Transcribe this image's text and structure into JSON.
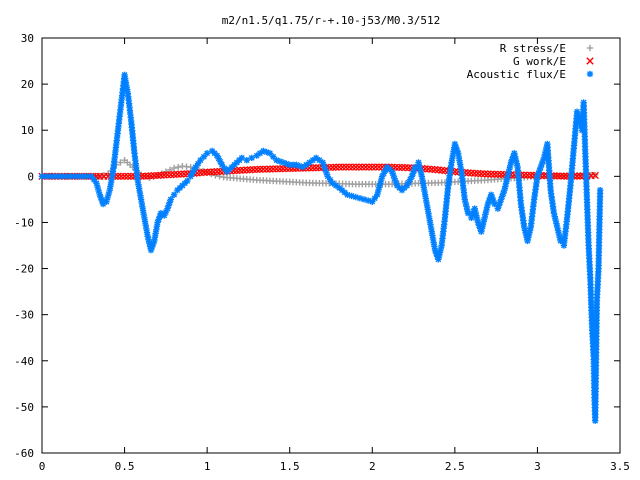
{
  "chart_data": {
    "type": "scatter",
    "title": "m2/n1.5/q1.75/r-+.10-j53/M0.3/512",
    "xlabel": "",
    "ylabel": "",
    "xlim": [
      0,
      3.5
    ],
    "ylim": [
      -60,
      30
    ],
    "xticks": [
      "0",
      "0.5",
      "1",
      "1.5",
      "2",
      "2.5",
      "3",
      "3.5"
    ],
    "yticks": [
      "30",
      "20",
      "10",
      "0",
      "-10",
      "-20",
      "-30",
      "-40",
      "-50",
      "-60"
    ],
    "grid": false,
    "legend_position": "top-right",
    "series": [
      {
        "name": "R stress/E",
        "marker": "+",
        "color": "#a0a0a0",
        "points": [
          [
            0.0,
            0
          ],
          [
            0.1,
            0
          ],
          [
            0.2,
            0
          ],
          [
            0.3,
            0
          ],
          [
            0.35,
            0
          ],
          [
            0.4,
            0.5
          ],
          [
            0.45,
            2.5
          ],
          [
            0.5,
            3.5
          ],
          [
            0.55,
            2
          ],
          [
            0.6,
            0.3
          ],
          [
            0.65,
            -0.3
          ],
          [
            0.7,
            0.2
          ],
          [
            0.75,
            1
          ],
          [
            0.8,
            1.8
          ],
          [
            0.85,
            2.2
          ],
          [
            0.9,
            2
          ],
          [
            0.95,
            1.5
          ],
          [
            1.0,
            0.8
          ],
          [
            1.05,
            0.2
          ],
          [
            1.1,
            -0.2
          ],
          [
            1.2,
            -0.5
          ],
          [
            1.3,
            -0.8
          ],
          [
            1.4,
            -1
          ],
          [
            1.5,
            -1.2
          ],
          [
            1.6,
            -1.4
          ],
          [
            1.7,
            -1.5
          ],
          [
            1.8,
            -1.6
          ],
          [
            1.9,
            -1.7
          ],
          [
            2.0,
            -1.7
          ],
          [
            2.1,
            -1.7
          ],
          [
            2.2,
            -1.6
          ],
          [
            2.3,
            -1.5
          ],
          [
            2.4,
            -1.4
          ],
          [
            2.5,
            -1.2
          ],
          [
            2.6,
            -1
          ],
          [
            2.7,
            -0.8
          ],
          [
            2.8,
            -0.5
          ],
          [
            2.9,
            -0.3
          ],
          [
            3.0,
            0
          ],
          [
            3.1,
            0
          ],
          [
            3.2,
            0.2
          ],
          [
            3.3,
            0.3
          ],
          [
            3.35,
            0.3
          ]
        ]
      },
      {
        "name": "G work/E",
        "marker": "x",
        "color": "#ff0000",
        "points": [
          [
            0.0,
            0
          ],
          [
            0.2,
            0
          ],
          [
            0.35,
            0
          ],
          [
            0.4,
            0
          ],
          [
            0.5,
            0
          ],
          [
            0.6,
            0
          ],
          [
            0.7,
            0.2
          ],
          [
            0.8,
            0.4
          ],
          [
            0.9,
            0.6
          ],
          [
            1.0,
            0.9
          ],
          [
            1.1,
            1.1
          ],
          [
            1.2,
            1.3
          ],
          [
            1.3,
            1.5
          ],
          [
            1.4,
            1.6
          ],
          [
            1.5,
            1.7
          ],
          [
            1.6,
            1.8
          ],
          [
            1.7,
            1.9
          ],
          [
            1.8,
            2
          ],
          [
            1.9,
            2
          ],
          [
            2.0,
            2
          ],
          [
            2.1,
            2
          ],
          [
            2.2,
            1.9
          ],
          [
            2.3,
            1.7
          ],
          [
            2.4,
            1.4
          ],
          [
            2.5,
            1
          ],
          [
            2.6,
            0.7
          ],
          [
            2.7,
            0.5
          ],
          [
            2.8,
            0.4
          ],
          [
            2.9,
            0.3
          ],
          [
            3.0,
            0.2
          ],
          [
            3.1,
            0.1
          ],
          [
            3.2,
            0
          ],
          [
            3.3,
            0.1
          ],
          [
            3.35,
            0.2
          ]
        ]
      },
      {
        "name": "Acoustic flux/E",
        "marker": "*",
        "color": "#0080ff",
        "points": [
          [
            0.0,
            0
          ],
          [
            0.05,
            0
          ],
          [
            0.1,
            0
          ],
          [
            0.15,
            0
          ],
          [
            0.2,
            0
          ],
          [
            0.25,
            0
          ],
          [
            0.3,
            0
          ],
          [
            0.33,
            -1.5
          ],
          [
            0.35,
            -4
          ],
          [
            0.37,
            -6
          ],
          [
            0.39,
            -5.5
          ],
          [
            0.41,
            -3
          ],
          [
            0.43,
            1
          ],
          [
            0.45,
            7
          ],
          [
            0.47,
            13
          ],
          [
            0.49,
            19
          ],
          [
            0.5,
            22
          ],
          [
            0.52,
            18
          ],
          [
            0.54,
            12
          ],
          [
            0.56,
            5
          ],
          [
            0.58,
            -1
          ],
          [
            0.6,
            -5
          ],
          [
            0.62,
            -9
          ],
          [
            0.64,
            -13
          ],
          [
            0.66,
            -16
          ],
          [
            0.68,
            -14
          ],
          [
            0.7,
            -10
          ],
          [
            0.72,
            -8
          ],
          [
            0.74,
            -8.5
          ],
          [
            0.76,
            -7
          ],
          [
            0.78,
            -5
          ],
          [
            0.8,
            -4
          ],
          [
            0.82,
            -3
          ],
          [
            0.85,
            -2
          ],
          [
            0.88,
            -1
          ],
          [
            0.9,
            0
          ],
          [
            0.93,
            2
          ],
          [
            0.96,
            3.5
          ],
          [
            1.0,
            5
          ],
          [
            1.03,
            5.5
          ],
          [
            1.06,
            4.5
          ],
          [
            1.09,
            2.5
          ],
          [
            1.12,
            1
          ],
          [
            1.15,
            2
          ],
          [
            1.18,
            3
          ],
          [
            1.21,
            4
          ],
          [
            1.24,
            3.5
          ],
          [
            1.27,
            4
          ],
          [
            1.3,
            4.5
          ],
          [
            1.34,
            5.5
          ],
          [
            1.38,
            5
          ],
          [
            1.42,
            3.5
          ],
          [
            1.46,
            3
          ],
          [
            1.5,
            2.5
          ],
          [
            1.54,
            2.5
          ],
          [
            1.58,
            2
          ],
          [
            1.62,
            3
          ],
          [
            1.66,
            4
          ],
          [
            1.7,
            3
          ],
          [
            1.73,
            0
          ],
          [
            1.76,
            -1.5
          ],
          [
            1.8,
            -2.5
          ],
          [
            1.85,
            -4
          ],
          [
            1.9,
            -4.5
          ],
          [
            1.95,
            -5
          ],
          [
            2.0,
            -5.5
          ],
          [
            2.03,
            -4
          ],
          [
            2.06,
            0
          ],
          [
            2.09,
            2
          ],
          [
            2.12,
            1
          ],
          [
            2.15,
            -2
          ],
          [
            2.18,
            -3
          ],
          [
            2.21,
            -2
          ],
          [
            2.24,
            0
          ],
          [
            2.26,
            2
          ],
          [
            2.28,
            3
          ],
          [
            2.3,
            0
          ],
          [
            2.32,
            -4
          ],
          [
            2.34,
            -8
          ],
          [
            2.36,
            -12
          ],
          [
            2.38,
            -16
          ],
          [
            2.4,
            -18
          ],
          [
            2.42,
            -15
          ],
          [
            2.44,
            -9
          ],
          [
            2.46,
            -2
          ],
          [
            2.48,
            3
          ],
          [
            2.5,
            7
          ],
          [
            2.52,
            5
          ],
          [
            2.54,
            1
          ],
          [
            2.56,
            -5
          ],
          [
            2.58,
            -8
          ],
          [
            2.6,
            -9
          ],
          [
            2.62,
            -7
          ],
          [
            2.64,
            -10
          ],
          [
            2.66,
            -12
          ],
          [
            2.68,
            -9
          ],
          [
            2.7,
            -6
          ],
          [
            2.72,
            -4
          ],
          [
            2.74,
            -6
          ],
          [
            2.76,
            -7
          ],
          [
            2.78,
            -5
          ],
          [
            2.8,
            -3
          ],
          [
            2.82,
            0
          ],
          [
            2.84,
            3
          ],
          [
            2.86,
            5
          ],
          [
            2.88,
            2
          ],
          [
            2.9,
            -6
          ],
          [
            2.92,
            -11
          ],
          [
            2.94,
            -14
          ],
          [
            2.96,
            -11
          ],
          [
            2.98,
            -5
          ],
          [
            3.0,
            0
          ],
          [
            3.02,
            2
          ],
          [
            3.04,
            4
          ],
          [
            3.06,
            7
          ],
          [
            3.08,
            -3
          ],
          [
            3.1,
            -8
          ],
          [
            3.12,
            -11
          ],
          [
            3.14,
            -14
          ],
          [
            3.16,
            -15
          ],
          [
            3.18,
            -9
          ],
          [
            3.2,
            -2
          ],
          [
            3.22,
            6
          ],
          [
            3.24,
            14
          ],
          [
            3.26,
            12
          ],
          [
            3.27,
            10
          ],
          [
            3.28,
            16
          ],
          [
            3.29,
            5
          ],
          [
            3.3,
            -5
          ],
          [
            3.31,
            -15
          ],
          [
            3.32,
            -22
          ],
          [
            3.33,
            -32
          ],
          [
            3.34,
            -39
          ],
          [
            3.345,
            -48
          ],
          [
            3.35,
            -53
          ],
          [
            3.36,
            -27
          ],
          [
            3.37,
            -20
          ],
          [
            3.38,
            -3
          ]
        ]
      }
    ]
  }
}
